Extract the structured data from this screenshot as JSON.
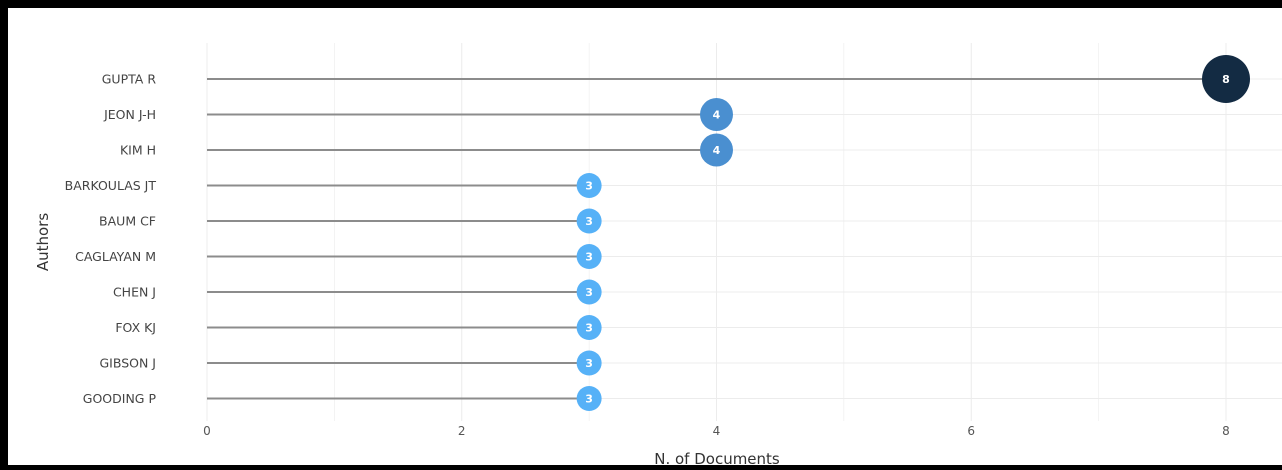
{
  "chart_data": {
    "type": "lollipop",
    "title": "",
    "xlabel": "N. of Documents",
    "ylabel": "Authors",
    "xlim": [
      0,
      8.4
    ],
    "xticks": [
      0,
      2,
      4,
      6,
      8
    ],
    "grid": true,
    "categories": [
      "GUPTA R",
      "JEON J-H",
      "KIM H",
      "BARKOULAS JT",
      "BAUM CF",
      "CAGLAYAN M",
      "CHEN J",
      "FOX KJ",
      "GIBSON J",
      "GOODING P"
    ],
    "values": [
      8,
      4,
      4,
      3,
      3,
      3,
      3,
      3,
      3,
      3
    ],
    "colors": {
      "stem": "#8c8c8c",
      "grid": "#ececec",
      "high": "#132b43",
      "mid": "#4a8fd0",
      "low": "#56b1f7",
      "frame": "#000000",
      "background": "#ffffff"
    }
  }
}
